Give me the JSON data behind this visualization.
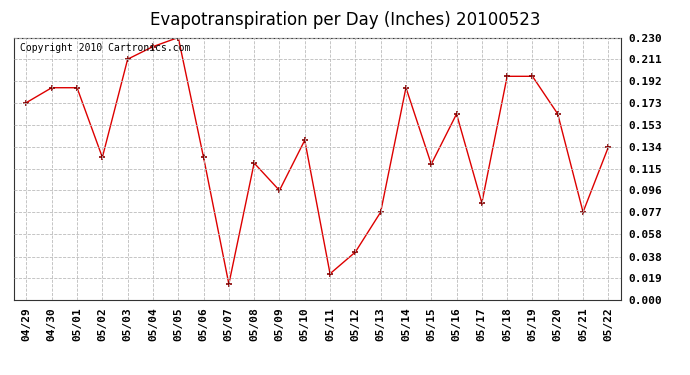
{
  "title": "Evapotranspiration per Day (Inches) 20100523",
  "copyright_text": "Copyright 2010 Cartronics.com",
  "dates": [
    "04/29",
    "04/30",
    "05/01",
    "05/02",
    "05/03",
    "05/04",
    "05/05",
    "05/06",
    "05/07",
    "05/08",
    "05/09",
    "05/10",
    "05/11",
    "05/12",
    "05/13",
    "05/14",
    "05/15",
    "05/16",
    "05/17",
    "05/18",
    "05/19",
    "05/20",
    "05/21",
    "05/22"
  ],
  "values": [
    0.173,
    0.186,
    0.186,
    0.125,
    0.211,
    0.222,
    0.23,
    0.125,
    0.014,
    0.12,
    0.096,
    0.14,
    0.023,
    0.042,
    0.077,
    0.186,
    0.119,
    0.163,
    0.085,
    0.196,
    0.196,
    0.163,
    0.077,
    0.134
  ],
  "line_color": "#dd0000",
  "marker": "+",
  "marker_color": "#880000",
  "bg_color": "#ffffff",
  "plot_bg_color": "#ffffff",
  "grid_color": "#bbbbbb",
  "yticks": [
    0.0,
    0.019,
    0.038,
    0.058,
    0.077,
    0.096,
    0.115,
    0.134,
    0.153,
    0.173,
    0.192,
    0.211,
    0.23
  ],
  "ylim": [
    0.0,
    0.23
  ],
  "title_fontsize": 12,
  "copyright_fontsize": 7,
  "tick_fontsize": 8
}
